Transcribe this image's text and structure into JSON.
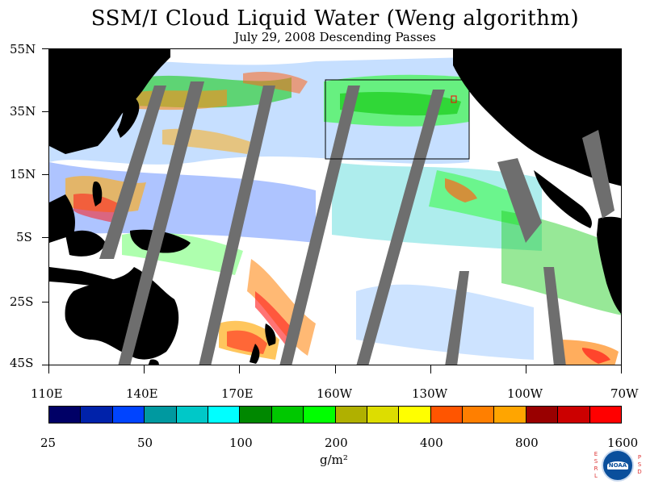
{
  "title": "SSM/I Cloud Liquid Water (Weng algorithm)",
  "subtitle": "July 29, 2008  Descending Passes",
  "map": {
    "lat_labels": [
      "55N",
      "35N",
      "15N",
      "5S",
      "25S",
      "45S"
    ],
    "lon_labels": [
      "110E",
      "140E",
      "170E",
      "160W",
      "130W",
      "100W",
      "70W"
    ],
    "unit": "g/m²"
  },
  "colorbar": {
    "colors": [
      "#000066",
      "#0022aa",
      "#0044ff",
      "#0099a0",
      "#00c8c8",
      "#00ffff",
      "#008800",
      "#00c800",
      "#00ff00",
      "#b0b000",
      "#dddd00",
      "#ffff00",
      "#ff5500",
      "#ff7f00",
      "#ffa500",
      "#990000",
      "#cc0000",
      "#ff0000"
    ],
    "tick_labels": [
      "25",
      "50",
      "100",
      "200",
      "400",
      "800",
      "1600"
    ]
  },
  "legend_colors": {
    "land": "#000000",
    "no_data_gap": "#6e6e6e",
    "clear_sky": "#ffffff"
  },
  "logo": {
    "left_letters": "ESRL",
    "right_letters": "PSD",
    "center_text": "NOAA"
  }
}
